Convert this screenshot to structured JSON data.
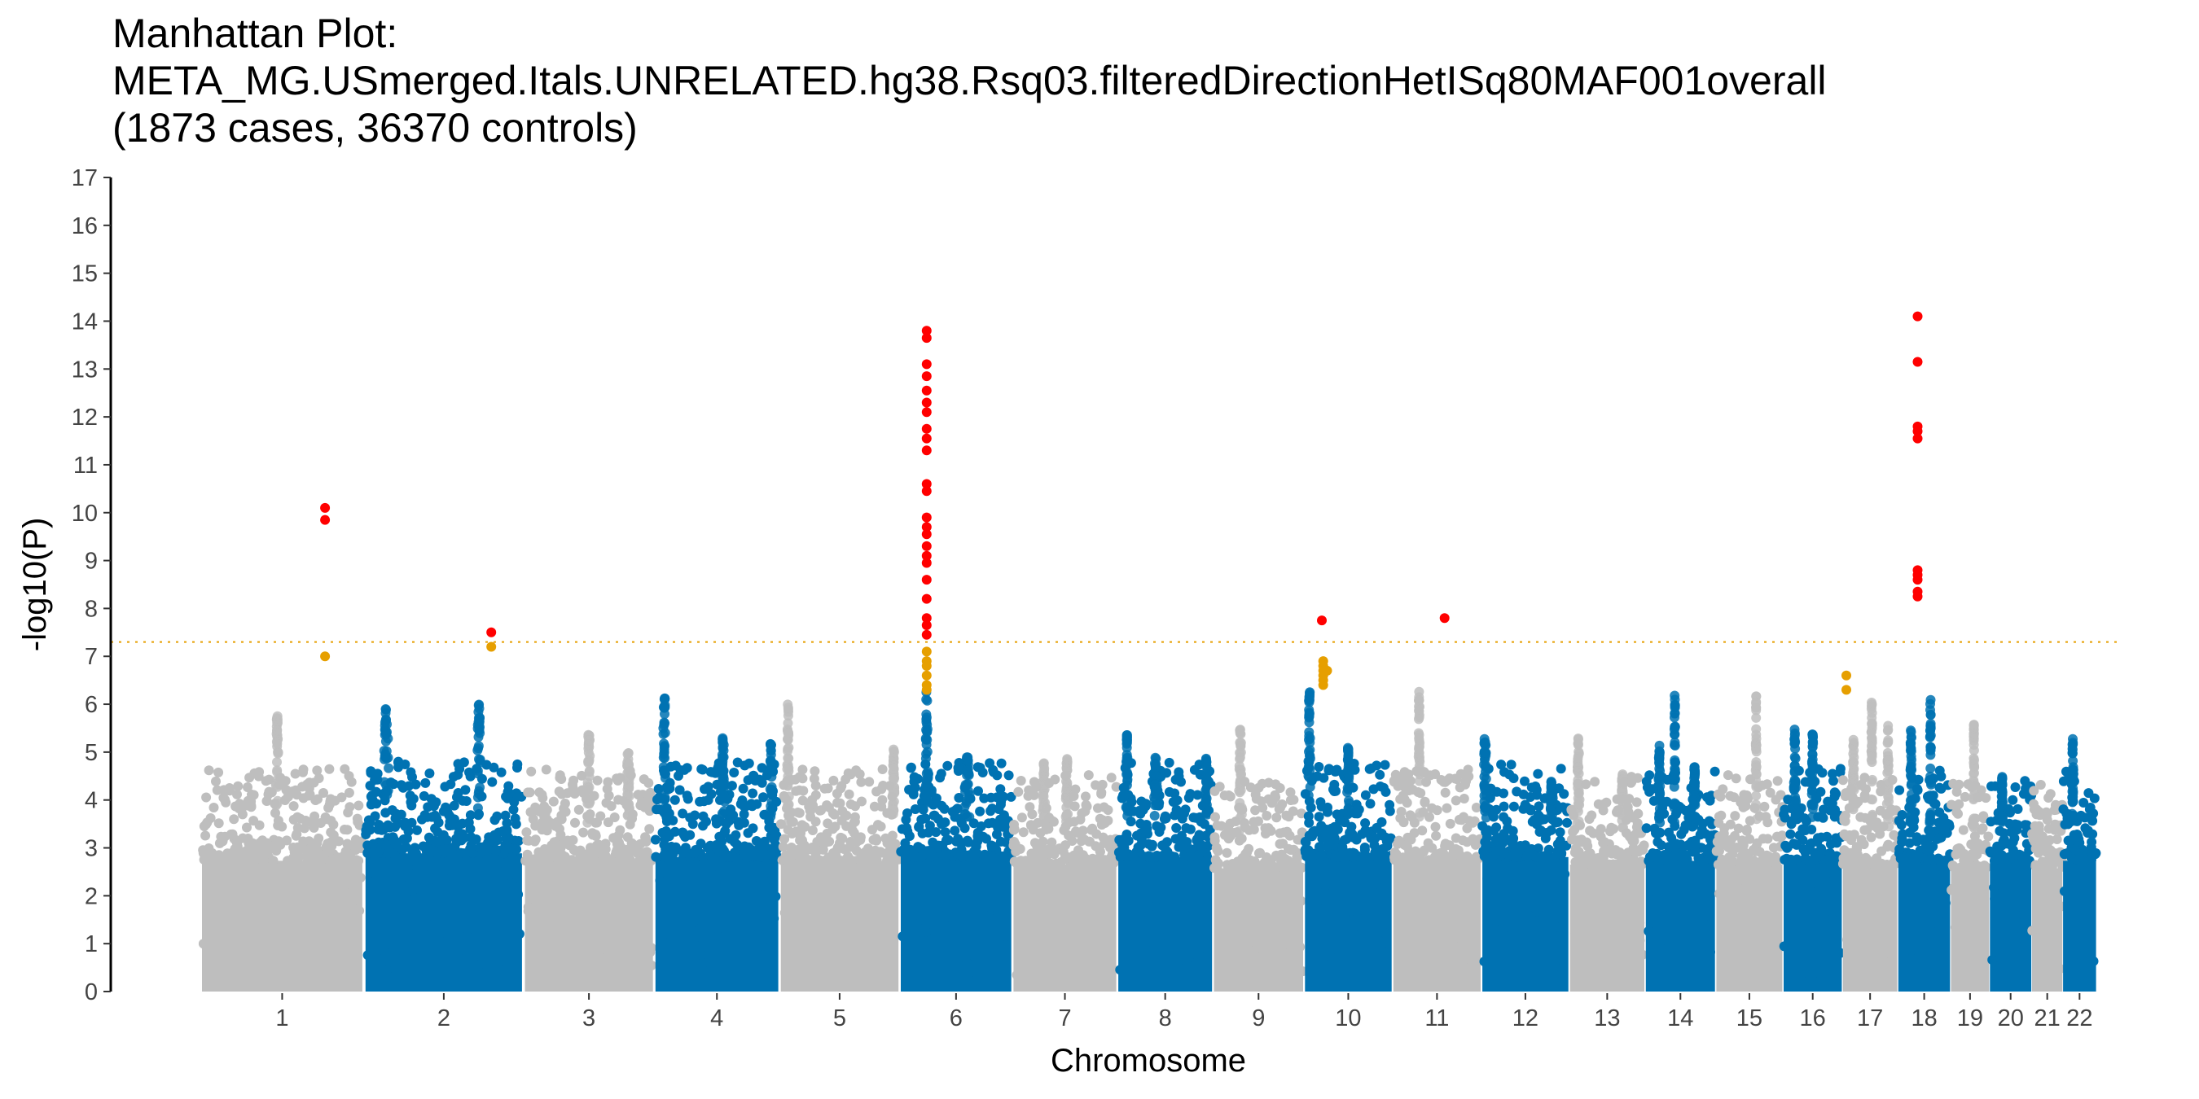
{
  "chart_data": {
    "type": "scatter",
    "title_lines": [
      "Manhattan Plot:",
      "META_MG.USmerged.Itals.UNRELATED.hg38.Rsq03.filteredDirectionHetISq80MAF001overall",
      "(1873 cases, 36370 controls)"
    ],
    "xlabel": "Chromosome",
    "ylabel": "-log10(P)",
    "ylim": [
      0,
      17
    ],
    "yticks": [
      "0",
      "1",
      "2",
      "3",
      "4",
      "5",
      "6",
      "7",
      "8",
      "9",
      "10",
      "11",
      "12",
      "13",
      "14",
      "15",
      "16",
      "17"
    ],
    "genome_wide_threshold": 7.3,
    "colors": {
      "odd_chromosome": "#bebebe",
      "even_chromosome": "#0072b2",
      "suggestive": "#e69f00",
      "significant": "#ff0000",
      "threshold_line": "#e69f00"
    },
    "chromosomes": [
      {
        "label": "1",
        "start": 0,
        "end": 248,
        "base_max": 3.5
      },
      {
        "label": "2",
        "start": 248,
        "end": 490,
        "base_max": 3.7
      },
      {
        "label": "3",
        "start": 490,
        "end": 688,
        "base_max": 3.5
      },
      {
        "label": "4",
        "start": 688,
        "end": 878,
        "base_max": 3.6
      },
      {
        "label": "5",
        "start": 878,
        "end": 1060,
        "base_max": 3.5
      },
      {
        "label": "6",
        "start": 1060,
        "end": 1231,
        "base_max": 3.6
      },
      {
        "label": "7",
        "start": 1231,
        "end": 1390,
        "base_max": 3.4
      },
      {
        "label": "8",
        "start": 1390,
        "end": 1535,
        "base_max": 3.6
      },
      {
        "label": "9",
        "start": 1535,
        "end": 1673,
        "base_max": 3.3
      },
      {
        "label": "10",
        "start": 1673,
        "end": 1807,
        "base_max": 3.6
      },
      {
        "label": "11",
        "start": 1807,
        "end": 1942,
        "base_max": 3.5
      },
      {
        "label": "12",
        "start": 1942,
        "end": 2075,
        "base_max": 3.6
      },
      {
        "label": "13",
        "start": 2075,
        "end": 2190,
        "base_max": 3.4
      },
      {
        "label": "14",
        "start": 2190,
        "end": 2297,
        "base_max": 3.5
      },
      {
        "label": "15",
        "start": 2297,
        "end": 2399,
        "base_max": 3.4
      },
      {
        "label": "16",
        "start": 2399,
        "end": 2489,
        "base_max": 3.5
      },
      {
        "label": "17",
        "start": 2489,
        "end": 2573,
        "base_max": 3.4
      },
      {
        "label": "18",
        "start": 2573,
        "end": 2653,
        "base_max": 3.5
      },
      {
        "label": "19",
        "start": 2653,
        "end": 2712,
        "base_max": 3.3
      },
      {
        "label": "20",
        "start": 2712,
        "end": 2776,
        "base_max": 3.5
      },
      {
        "label": "21",
        "start": 2776,
        "end": 2823,
        "base_max": 3.3
      },
      {
        "label": "22",
        "start": 2823,
        "end": 2874,
        "base_max": 3.5
      }
    ],
    "peaks": [
      {
        "chrom": "1",
        "pos": 0.47,
        "max": 5.8,
        "width": 0.02
      },
      {
        "chrom": "2",
        "pos": 0.14,
        "max": 5.9,
        "width": 0.04
      },
      {
        "chrom": "2",
        "pos": 0.72,
        "max": 6.0,
        "width": 0.03
      },
      {
        "chrom": "3",
        "pos": 0.5,
        "max": 5.5,
        "width": 0.03
      },
      {
        "chrom": "3",
        "pos": 0.8,
        "max": 5.0,
        "width": 0.03
      },
      {
        "chrom": "4",
        "pos": 0.08,
        "max": 6.2,
        "width": 0.03
      },
      {
        "chrom": "4",
        "pos": 0.55,
        "max": 5.3,
        "width": 0.03
      },
      {
        "chrom": "4",
        "pos": 0.93,
        "max": 5.2,
        "width": 0.02
      },
      {
        "chrom": "5",
        "pos": 0.07,
        "max": 6.0,
        "width": 0.02
      },
      {
        "chrom": "5",
        "pos": 0.95,
        "max": 5.1,
        "width": 0.02
      },
      {
        "chrom": "6",
        "pos": 0.24,
        "max": 6.3,
        "width": 0.03
      },
      {
        "chrom": "6",
        "pos": 0.6,
        "max": 4.9,
        "width": 0.05
      },
      {
        "chrom": "7",
        "pos": 0.3,
        "max": 4.8,
        "width": 0.03
      },
      {
        "chrom": "7",
        "pos": 0.52,
        "max": 4.9,
        "width": 0.03
      },
      {
        "chrom": "8",
        "pos": 0.1,
        "max": 5.4,
        "width": 0.02
      },
      {
        "chrom": "8",
        "pos": 0.4,
        "max": 4.9,
        "width": 0.04
      },
      {
        "chrom": "8",
        "pos": 0.93,
        "max": 4.9,
        "width": 0.02
      },
      {
        "chrom": "9",
        "pos": 0.3,
        "max": 5.5,
        "width": 0.04
      },
      {
        "chrom": "10",
        "pos": 0.06,
        "max": 6.3,
        "width": 0.03
      },
      {
        "chrom": "10",
        "pos": 0.5,
        "max": 5.1,
        "width": 0.03
      },
      {
        "chrom": "11",
        "pos": 0.3,
        "max": 6.3,
        "width": 0.02
      },
      {
        "chrom": "12",
        "pos": 0.04,
        "max": 5.4,
        "width": 0.04
      },
      {
        "chrom": "12",
        "pos": 0.8,
        "max": 4.4,
        "width": 0.04
      },
      {
        "chrom": "13",
        "pos": 0.12,
        "max": 5.3,
        "width": 0.04
      },
      {
        "chrom": "13",
        "pos": 0.7,
        "max": 4.6,
        "width": 0.03
      },
      {
        "chrom": "14",
        "pos": 0.2,
        "max": 5.2,
        "width": 0.03
      },
      {
        "chrom": "14",
        "pos": 0.42,
        "max": 6.2,
        "width": 0.02
      },
      {
        "chrom": "14",
        "pos": 0.7,
        "max": 4.7,
        "width": 0.03
      },
      {
        "chrom": "15",
        "pos": 0.6,
        "max": 6.2,
        "width": 0.02
      },
      {
        "chrom": "16",
        "pos": 0.2,
        "max": 5.5,
        "width": 0.04
      },
      {
        "chrom": "16",
        "pos": 0.5,
        "max": 5.4,
        "width": 0.04
      },
      {
        "chrom": "17",
        "pos": 0.2,
        "max": 5.3,
        "width": 0.04
      },
      {
        "chrom": "17",
        "pos": 0.53,
        "max": 6.1,
        "width": 0.03
      },
      {
        "chrom": "17",
        "pos": 0.82,
        "max": 5.6,
        "width": 0.04
      },
      {
        "chrom": "18",
        "pos": 0.25,
        "max": 5.5,
        "width": 0.04
      },
      {
        "chrom": "18",
        "pos": 0.62,
        "max": 6.1,
        "width": 0.03
      },
      {
        "chrom": "19",
        "pos": 0.6,
        "max": 5.6,
        "width": 0.03
      },
      {
        "chrom": "20",
        "pos": 0.3,
        "max": 4.5,
        "width": 0.04
      },
      {
        "chrom": "22",
        "pos": 0.3,
        "max": 5.3,
        "width": 0.06
      }
    ],
    "suggestive_hits": [
      {
        "x": 189,
        "y": 7.0
      },
      {
        "x": 441,
        "y": 7.2
      },
      {
        "x": 1101,
        "y": 7.1
      },
      {
        "x": 1101,
        "y": 6.9
      },
      {
        "x": 1101,
        "y": 6.8
      },
      {
        "x": 1101,
        "y": 6.6
      },
      {
        "x": 1101,
        "y": 6.4
      },
      {
        "x": 1101,
        "y": 6.3
      },
      {
        "x": 1702,
        "y": 6.9
      },
      {
        "x": 1702,
        "y": 6.8
      },
      {
        "x": 1702,
        "y": 6.7
      },
      {
        "x": 1702,
        "y": 6.6
      },
      {
        "x": 1702,
        "y": 6.5
      },
      {
        "x": 1702,
        "y": 6.4
      },
      {
        "x": 1708,
        "y": 6.7
      },
      {
        "x": 2495,
        "y": 6.6
      },
      {
        "x": 2495,
        "y": 6.3
      }
    ],
    "significant_hits": [
      {
        "x": 189,
        "y": 10.1
      },
      {
        "x": 189,
        "y": 9.85
      },
      {
        "x": 441,
        "y": 7.5
      },
      {
        "x": 1101,
        "y": 13.8
      },
      {
        "x": 1101,
        "y": 13.65
      },
      {
        "x": 1101,
        "y": 13.1
      },
      {
        "x": 1101,
        "y": 12.85
      },
      {
        "x": 1101,
        "y": 12.55
      },
      {
        "x": 1101,
        "y": 12.3
      },
      {
        "x": 1101,
        "y": 12.1
      },
      {
        "x": 1101,
        "y": 11.75
      },
      {
        "x": 1101,
        "y": 11.55
      },
      {
        "x": 1101,
        "y": 11.3
      },
      {
        "x": 1101,
        "y": 10.6
      },
      {
        "x": 1101,
        "y": 10.45
      },
      {
        "x": 1101,
        "y": 9.9
      },
      {
        "x": 1101,
        "y": 9.7
      },
      {
        "x": 1101,
        "y": 9.55
      },
      {
        "x": 1101,
        "y": 9.3
      },
      {
        "x": 1101,
        "y": 9.1
      },
      {
        "x": 1101,
        "y": 8.95
      },
      {
        "x": 1101,
        "y": 8.6
      },
      {
        "x": 1101,
        "y": 8.2
      },
      {
        "x": 1101,
        "y": 7.8
      },
      {
        "x": 1101,
        "y": 7.65
      },
      {
        "x": 1101,
        "y": 7.45
      },
      {
        "x": 1700,
        "y": 7.75
      },
      {
        "x": 1886,
        "y": 7.8
      },
      {
        "x": 2603,
        "y": 14.1
      },
      {
        "x": 2603,
        "y": 13.15
      },
      {
        "x": 2603,
        "y": 11.8
      },
      {
        "x": 2603,
        "y": 11.7
      },
      {
        "x": 2603,
        "y": 11.55
      },
      {
        "x": 2603,
        "y": 8.8
      },
      {
        "x": 2603,
        "y": 8.7
      },
      {
        "x": 2603,
        "y": 8.6
      },
      {
        "x": 2603,
        "y": 8.35
      },
      {
        "x": 2603,
        "y": 8.25
      }
    ]
  }
}
